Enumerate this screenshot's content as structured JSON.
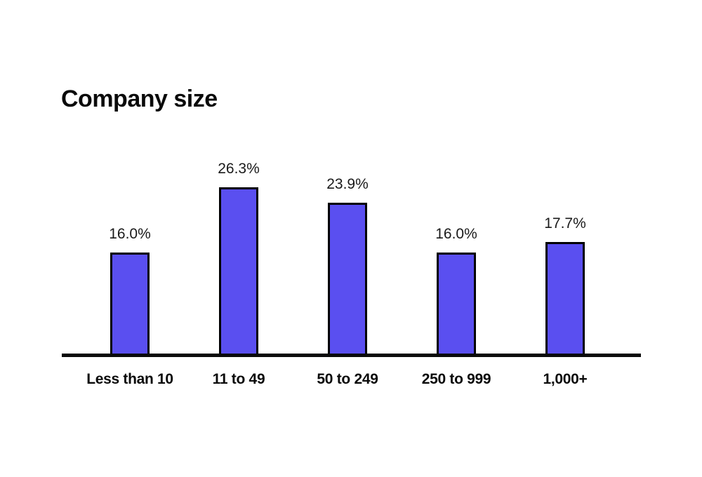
{
  "title": "Company size",
  "colors": {
    "background": "#FFFFFF",
    "bar_fill": "#5A4FF0",
    "bar_outline": "#000000",
    "axis": "#0A0A0A",
    "text": "#1A1A1A"
  },
  "chart_data": {
    "type": "bar",
    "title": "Company size",
    "categories": [
      "Less than 10",
      "11 to 49",
      "50 to 249",
      "250 to 999",
      "1,000+"
    ],
    "values": [
      16.0,
      26.3,
      23.9,
      16.0,
      17.7
    ],
    "value_labels": [
      "16.0%",
      "26.3%",
      "23.9%",
      "16.0%",
      "17.7%"
    ],
    "xlabel": "",
    "ylabel": "",
    "ylim": [
      0,
      30
    ],
    "grid": false,
    "legend": "none",
    "bar_color": "#5A4FF0",
    "bar_border_color": "#000000"
  }
}
